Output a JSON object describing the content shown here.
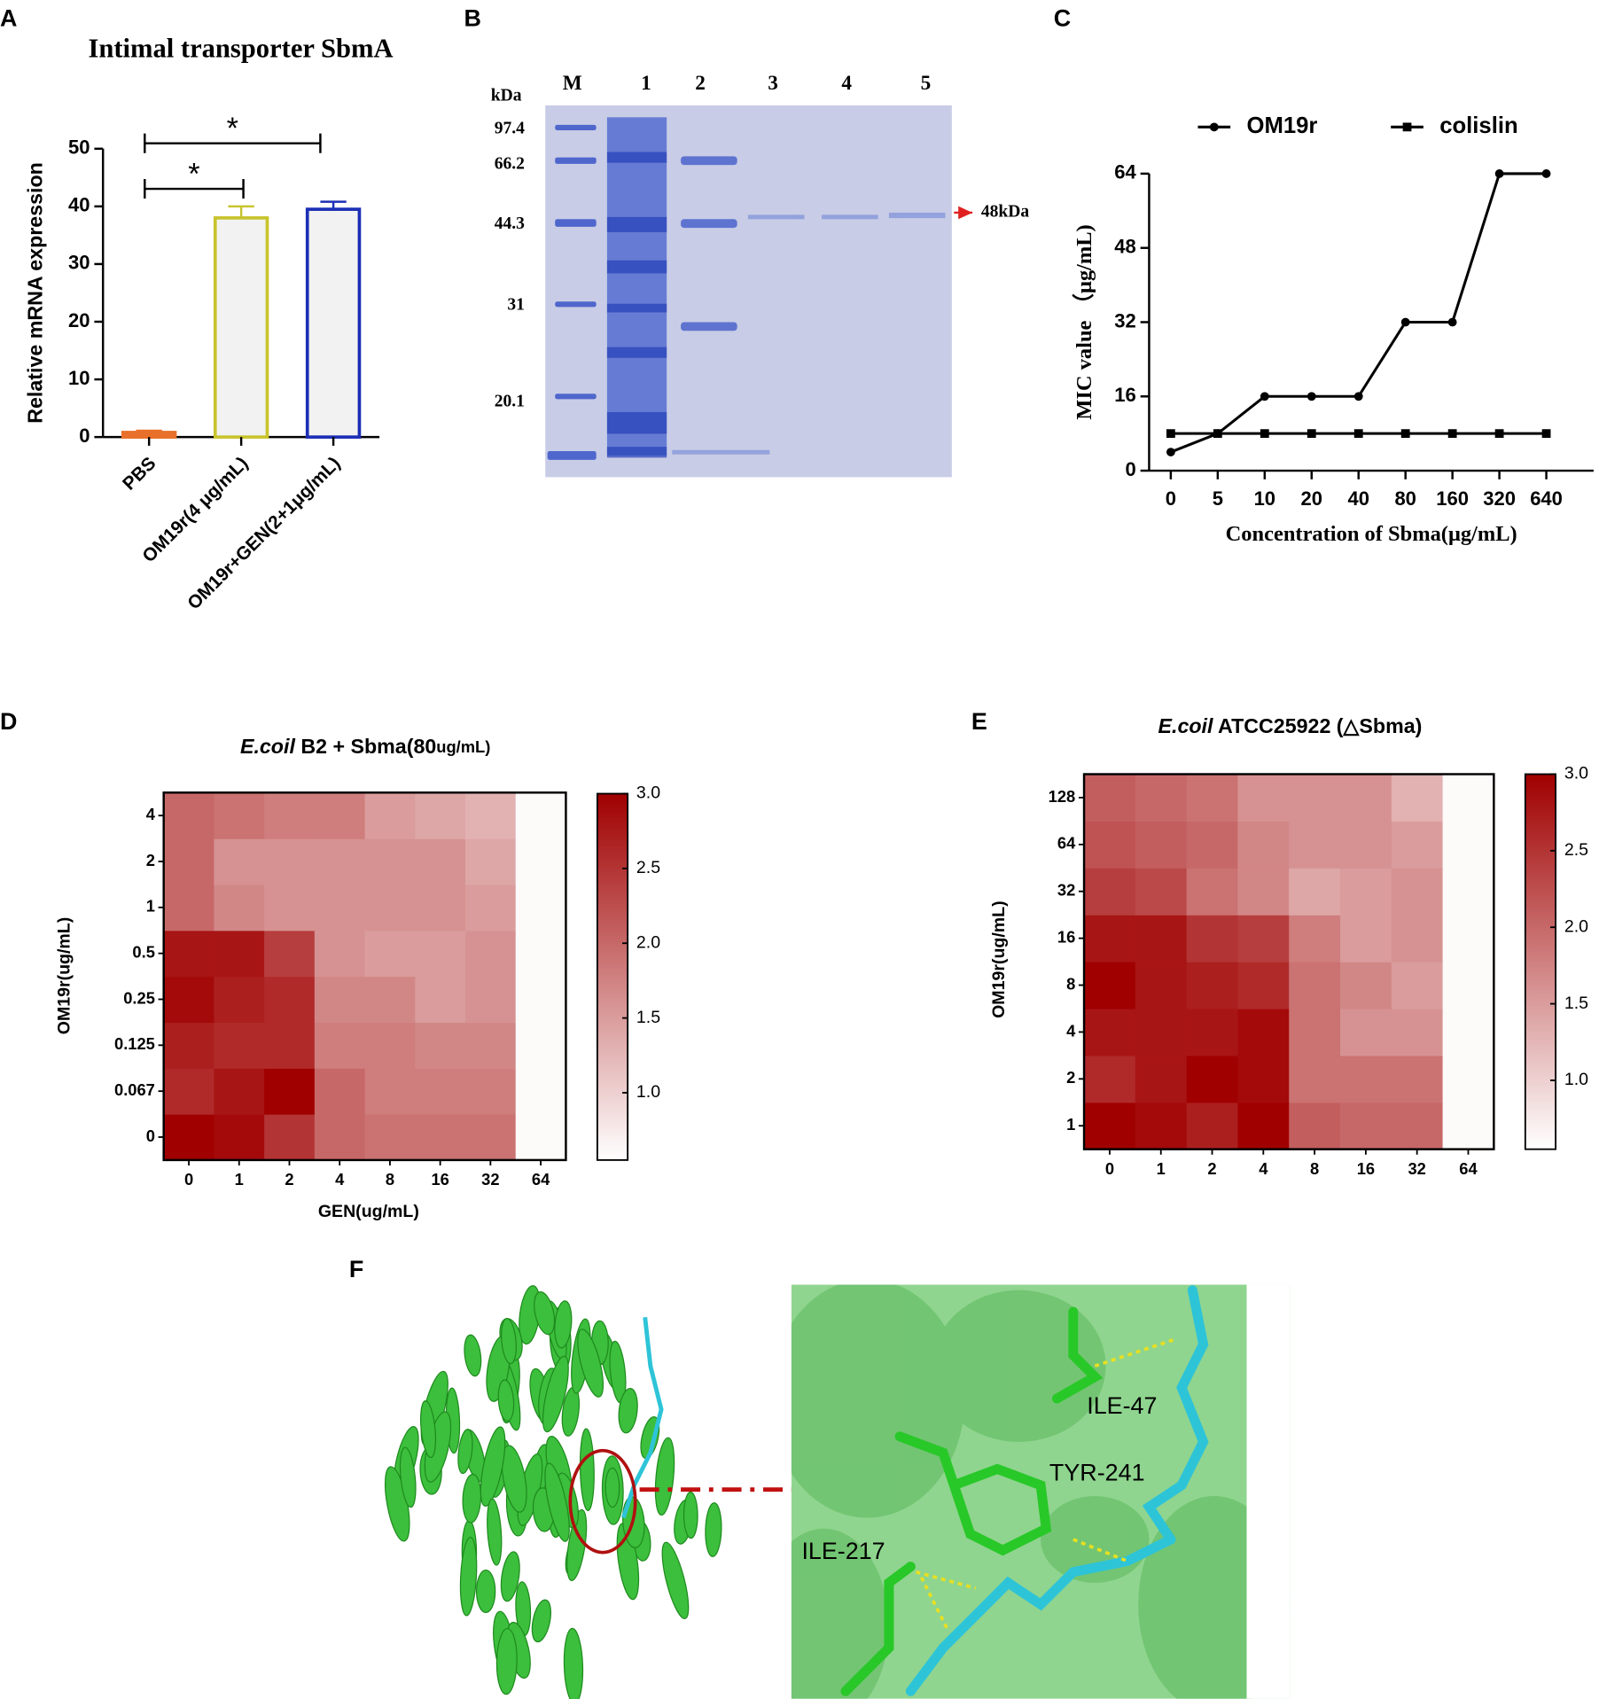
{
  "panels": [
    "A",
    "B",
    "C",
    "D",
    "E",
    "F"
  ],
  "chart_data": [
    {
      "type": "bar",
      "title": "Intimal transporter SbmA",
      "ylabel": "Relative mRNA expression",
      "categories": [
        "PBS",
        "OM19r(4 μg/mL)",
        "OM19r+GEN(2+1μg/mL)"
      ],
      "values": [
        0.8,
        38,
        39.5
      ],
      "errors": [
        0.3,
        2,
        1.3
      ],
      "colors": [
        "#e8702a",
        "#c8c42e",
        "#1c2fb5"
      ],
      "fill": "#f2f2f2",
      "ylim": [
        0,
        50
      ],
      "yticks": [
        0,
        10,
        20,
        30,
        40,
        50
      ],
      "annotations": [
        {
          "text": "*"
        },
        {
          "text": "*"
        }
      ]
    },
    {
      "type": "line",
      "xlabel": "Concentration of Sbma(μg/mL)",
      "ylabel": "MIC value （μg/mL)",
      "categories": [
        "0",
        "5",
        "10",
        "20",
        "40",
        "80",
        "160",
        "320",
        "640"
      ],
      "series": [
        {
          "name": "OM19r",
          "color": "#000000",
          "marker": "circle",
          "values": [
            4,
            8,
            16,
            16,
            16,
            32,
            32,
            64,
            64
          ]
        },
        {
          "name": "colislin",
          "color": "#000000",
          "marker": "square",
          "values": [
            8,
            8,
            8,
            8,
            8,
            8,
            8,
            8,
            8
          ]
        }
      ],
      "ylim": [
        0,
        64
      ],
      "yticks": [
        0,
        16,
        32,
        48,
        64
      ]
    },
    {
      "type": "heatmap",
      "title_parts": [
        "E.coil",
        " B2 + Sbma(80",
        "ug/mL)"
      ],
      "xlabel": "GEN(ug/mL)",
      "ylabel": "OM19r(ug/mL)",
      "x": [
        "0",
        "1",
        "2",
        "4",
        "8",
        "16",
        "32",
        "64"
      ],
      "y": [
        "0",
        "0.067",
        "0.125",
        "0.25",
        "0.5",
        "1",
        "2",
        "4"
      ],
      "values": [
        [
          3.0,
          2.9,
          2.5,
          2.0,
          1.9,
          1.9,
          1.9,
          0.6
        ],
        [
          2.6,
          2.8,
          3.0,
          2.0,
          1.8,
          1.8,
          1.8,
          0.6
        ],
        [
          2.7,
          2.6,
          2.6,
          1.8,
          1.8,
          1.7,
          1.7,
          0.6
        ],
        [
          2.9,
          2.7,
          2.6,
          1.7,
          1.7,
          1.5,
          1.6,
          0.6
        ],
        [
          2.8,
          2.8,
          2.4,
          1.6,
          1.5,
          1.5,
          1.6,
          0.6
        ],
        [
          2.0,
          1.7,
          1.6,
          1.6,
          1.6,
          1.6,
          1.5,
          0.6
        ],
        [
          2.0,
          1.6,
          1.6,
          1.6,
          1.6,
          1.6,
          1.4,
          0.6
        ],
        [
          2.0,
          1.9,
          1.8,
          1.8,
          1.5,
          1.4,
          1.3,
          0.6
        ]
      ],
      "zlim": [
        0.55,
        3.0
      ],
      "zticks": [
        {
          "value": 1,
          "label": "1.0"
        },
        1.5,
        {
          "value": 2,
          "label": "2.0"
        },
        2.5,
        {
          "value": 3,
          "label": "3.0"
        }
      ],
      "colors": [
        "#ffffff",
        "#a00000"
      ]
    },
    {
      "type": "heatmap",
      "title_parts": [
        "E.coil",
        " ATCC25922 (△Sbma)"
      ],
      "ylabel": "OM19r(ug/mL)",
      "x": [
        "0",
        "1",
        "2",
        "4",
        "8",
        "16",
        "32",
        "64"
      ],
      "y": [
        "1",
        "2",
        "4",
        "8",
        "16",
        "32",
        "64",
        "128"
      ],
      "values": [
        [
          3.0,
          2.9,
          2.7,
          3.0,
          2.1,
          2.0,
          2.0,
          0.6
        ],
        [
          2.6,
          2.8,
          3.0,
          2.9,
          1.9,
          1.9,
          1.9,
          0.6
        ],
        [
          2.8,
          2.8,
          2.8,
          2.9,
          1.9,
          1.6,
          1.6,
          0.6
        ],
        [
          3.0,
          2.8,
          2.7,
          2.6,
          1.9,
          1.7,
          1.5,
          0.6
        ],
        [
          2.8,
          2.8,
          2.5,
          2.4,
          1.8,
          1.5,
          1.6,
          0.6
        ],
        [
          2.4,
          2.3,
          1.9,
          1.7,
          1.4,
          1.5,
          1.6,
          0.6
        ],
        [
          2.2,
          2.1,
          2.0,
          1.7,
          1.6,
          1.6,
          1.5,
          0.6
        ],
        [
          2.1,
          2.0,
          1.9,
          1.6,
          1.6,
          1.6,
          1.3,
          0.6
        ]
      ],
      "zlim": [
        0.55,
        3.0
      ],
      "zticks": [
        {
          "value": 1,
          "label": "1.0"
        },
        1.5,
        {
          "value": 2,
          "label": "2.0"
        },
        2.5,
        {
          "value": 3,
          "label": "3.0"
        }
      ],
      "colors": [
        "#ffffff",
        "#a00000"
      ]
    }
  ],
  "gel": {
    "unit": "kDa",
    "lanes": [
      "M",
      "1",
      "2",
      "3",
      "4",
      "5"
    ],
    "markers": [
      97.4,
      66.2,
      44.3,
      31,
      20.1
    ],
    "band_label": "48kDa"
  },
  "structure": {
    "residues": [
      "ILE-47",
      "TYR-241",
      "ILE-217"
    ]
  }
}
